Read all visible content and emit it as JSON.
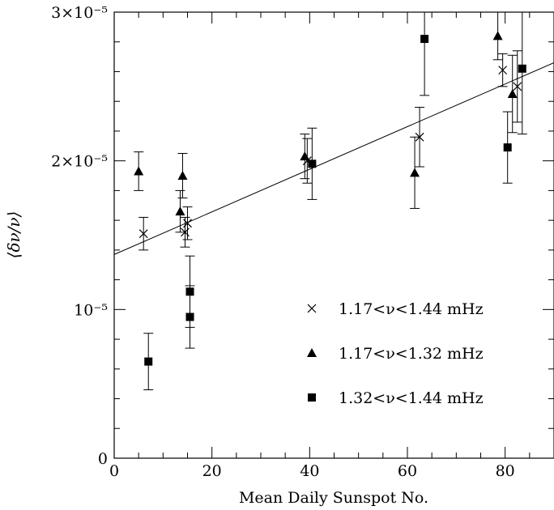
{
  "chart_data": {
    "type": "scatter",
    "xlabel": "Mean Daily Sunspot No.",
    "ylabel": "⟨δν/ν⟩",
    "xlim": [
      0,
      90
    ],
    "ylim": [
      0,
      3e-05
    ],
    "x_ticks": [
      {
        "value": 0,
        "label": "0"
      },
      {
        "value": 20,
        "label": "20"
      },
      {
        "value": 40,
        "label": "40"
      },
      {
        "value": 60,
        "label": "60"
      },
      {
        "value": 80,
        "label": "80"
      }
    ],
    "y_ticks": [
      {
        "value": 0,
        "label": "0"
      },
      {
        "value": 1e-05,
        "label": "10⁻⁵"
      },
      {
        "value": 2e-05,
        "label": "2×10⁻⁵"
      },
      {
        "value": 3e-05,
        "label": "3×10⁻⁵"
      }
    ],
    "fit_line": {
      "x": [
        0,
        90
      ],
      "y": [
        1.37e-05,
        2.66e-05
      ]
    },
    "legend_position": "lower-right",
    "series": [
      {
        "name": "1.17<ν<1.44 mHz",
        "marker": "cross",
        "points": [
          {
            "x": 6,
            "y": 1.51e-05,
            "yerr": 1.1e-06
          },
          {
            "x": 14.5,
            "y": 1.52e-05,
            "yerr": 1e-06
          },
          {
            "x": 15,
            "y": 1.58e-05,
            "yerr": 1.1e-06
          },
          {
            "x": 39.5,
            "y": 2e-05,
            "yerr": 1.5e-06
          },
          {
            "x": 62.5,
            "y": 2.16e-05,
            "yerr": 2e-06
          },
          {
            "x": 79.5,
            "y": 2.61e-05,
            "yerr": 1.1e-06
          },
          {
            "x": 82.5,
            "y": 2.5e-05,
            "yerr": 2.4e-06
          }
        ]
      },
      {
        "name": "1.17<ν<1.32 mHz",
        "marker": "triangle",
        "points": [
          {
            "x": 5,
            "y": 1.93e-05,
            "yerr": 1.3e-06
          },
          {
            "x": 13.5,
            "y": 1.66e-05,
            "yerr": 1.4e-06
          },
          {
            "x": 14,
            "y": 1.9e-05,
            "yerr": 1.5e-06
          },
          {
            "x": 39,
            "y": 2.03e-05,
            "yerr": 1.5e-06
          },
          {
            "x": 61.5,
            "y": 1.92e-05,
            "yerr": 2.4e-06
          },
          {
            "x": 78.5,
            "y": 2.84e-05,
            "yerr": 1.6e-06
          },
          {
            "x": 81.5,
            "y": 2.45e-05,
            "yerr": 2.6e-06
          }
        ]
      },
      {
        "name": "1.32<ν<1.44 mHz",
        "marker": "square",
        "points": [
          {
            "x": 7,
            "y": 6.5e-06,
            "yerr": 1.9e-06
          },
          {
            "x": 15.5,
            "y": 1.12e-05,
            "yerr": 2.4e-06
          },
          {
            "x": 15.5,
            "y": 9.5e-06,
            "yerr": 2.1e-06
          },
          {
            "x": 40.5,
            "y": 1.98e-05,
            "yerr": 2.4e-06
          },
          {
            "x": 63.5,
            "y": 2.82e-05,
            "yerr": 3.8e-06
          },
          {
            "x": 80.5,
            "y": 2.09e-05,
            "yerr": 2.4e-06
          },
          {
            "x": 83.5,
            "y": 2.62e-05,
            "yerr": 4.4e-06
          }
        ]
      }
    ]
  }
}
